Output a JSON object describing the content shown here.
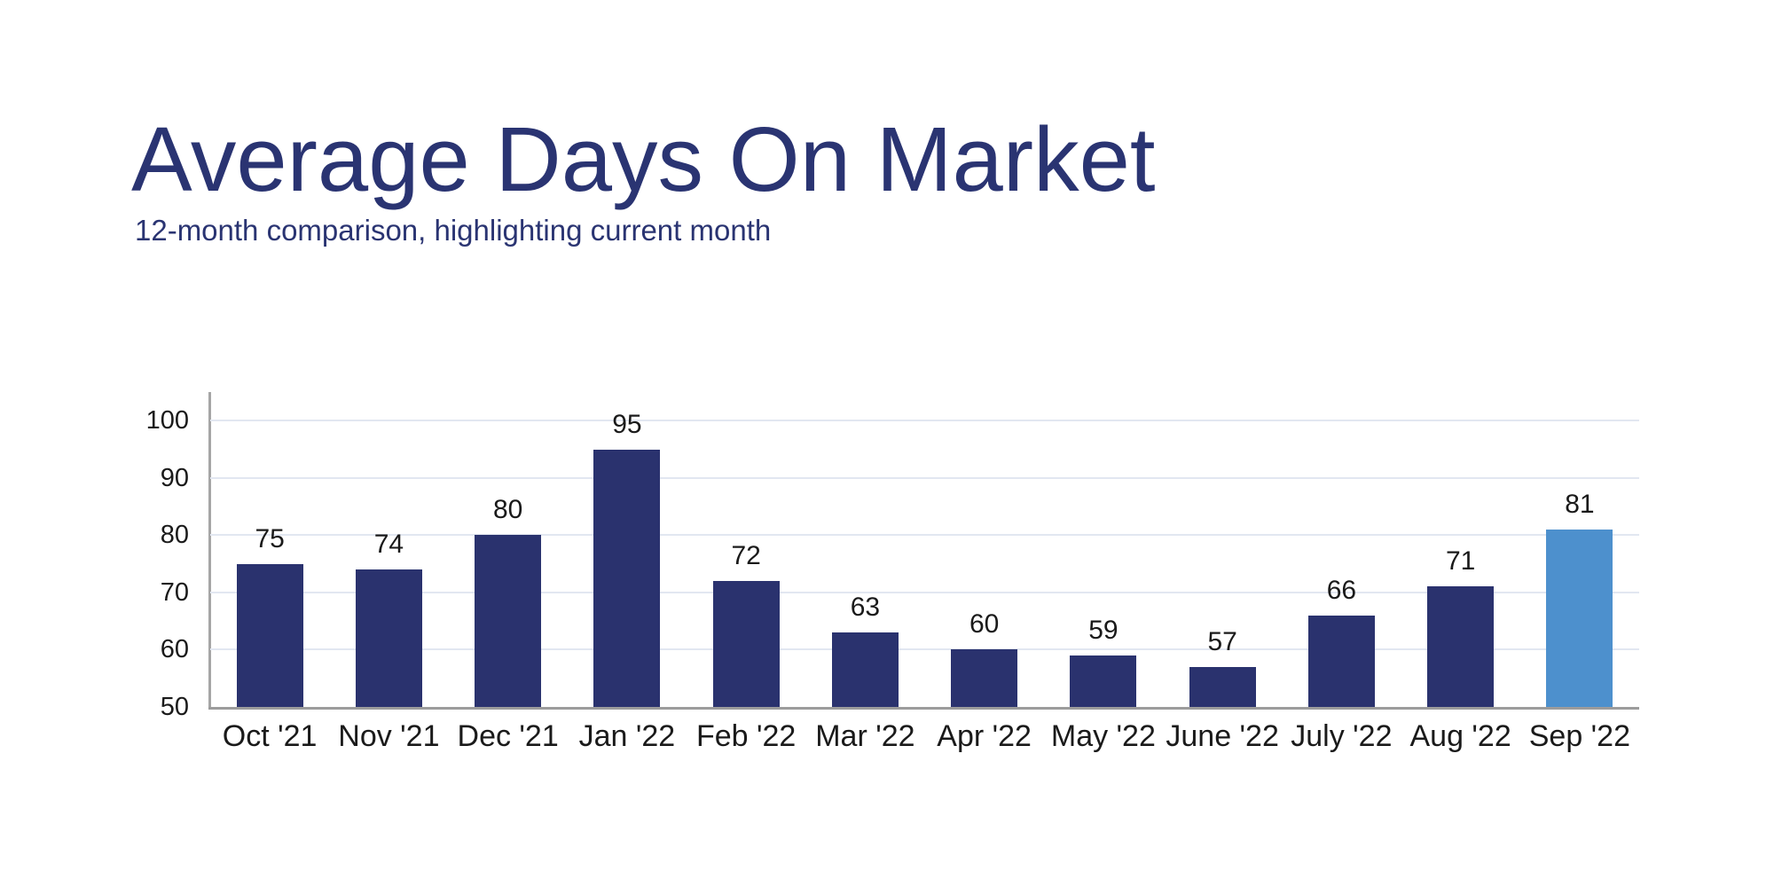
{
  "page": {
    "title": "Average Days On Market",
    "subtitle": "12-month comparison, highlighting current month"
  },
  "chart_data": {
    "type": "bar",
    "title": "Average Days On Market",
    "subtitle": "12-month comparison, highlighting current month",
    "categories": [
      "Oct '21",
      "Nov '21",
      "Dec '21",
      "Jan '22",
      "Feb '22",
      "Mar '22",
      "Apr '22",
      "May '22",
      "June '22",
      "July '22",
      "Aug '22",
      "Sep '22"
    ],
    "values": [
      75,
      74,
      80,
      95,
      72,
      63,
      60,
      59,
      57,
      66,
      71,
      81
    ],
    "highlighted_category": "Sep '22",
    "highlight_index": 11,
    "xlabel": "",
    "ylabel": "",
    "yticks": [
      50,
      60,
      70,
      80,
      90,
      100
    ],
    "ylim": [
      50,
      105
    ],
    "grid": "horizontal-only",
    "legend": "none",
    "bar_value_labels": true,
    "colors": {
      "bar": "#2A326E",
      "highlight_bar": "#4D90CD",
      "heading_text": "#2A3472",
      "label_text": "#1A1A1A",
      "gridline": "#E2E7F1",
      "axis_line": "#A6A6A6",
      "baseline": "#9C9C9C",
      "background": "#FFFFFF"
    }
  }
}
